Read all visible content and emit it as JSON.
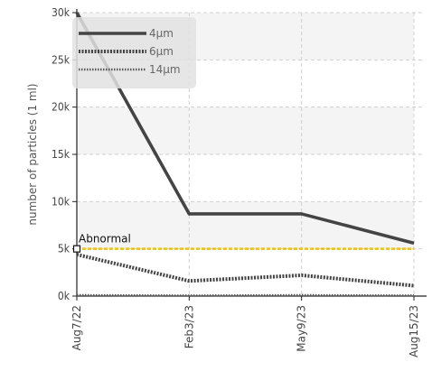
{
  "chart_data": {
    "type": "line",
    "ylabel": "number of particles (1 ml)",
    "xlabel": "",
    "ylim": [
      0,
      30000
    ],
    "y_ticks": [
      0,
      5000,
      10000,
      15000,
      20000,
      25000,
      30000
    ],
    "y_tick_labels": [
      "0k",
      "5k",
      "10k",
      "15k",
      "20k",
      "25k",
      "30k"
    ],
    "categories": [
      "Aug7/22",
      "Feb3/23",
      "May9/23",
      "Aug15/23"
    ],
    "grid": true,
    "legend_position": "top-left",
    "series": [
      {
        "name": "4μm",
        "values": [
          30000,
          8700,
          8700,
          5600
        ],
        "color": "#444444",
        "style": "solid"
      },
      {
        "name": "6μm",
        "values": [
          4400,
          1600,
          2200,
          1100
        ],
        "color": "#444444",
        "style": "dotted-thick"
      },
      {
        "name": "14μm",
        "values": [
          100,
          50,
          100,
          50
        ],
        "color": "#555555",
        "style": "dotted-thin"
      }
    ],
    "threshold": {
      "label": "Abnormal",
      "value": 5000,
      "color": "#f2c200"
    }
  }
}
